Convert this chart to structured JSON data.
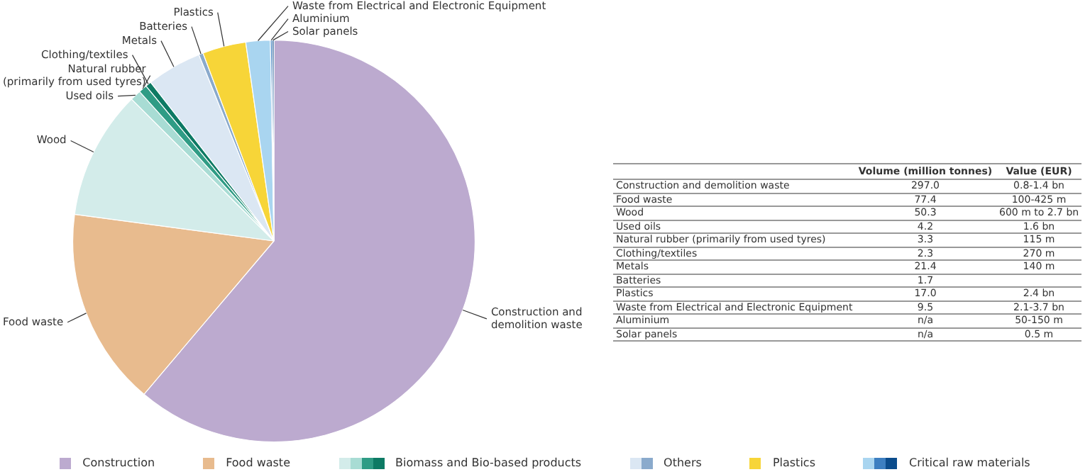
{
  "chart_data": {
    "type": "pie",
    "categories": [
      "Construction and demolition waste",
      "Food waste",
      "Wood",
      "Used oils",
      "Natural rubber (primarily from used tyres)",
      "Clothing/textiles",
      "Metals",
      "Batteries",
      "Plastics",
      "Waste from Electrical and Electronic Equipment",
      "Aluminium",
      "Solar panels"
    ],
    "values": [
      61.18,
      15.94,
      10.36,
      0.87,
      0.68,
      0.47,
      4.41,
      0.35,
      3.5,
      1.96,
      0.14,
      0.14
    ],
    "colors": [
      "#bcaacf",
      "#e8bb8e",
      "#d3ecea",
      "#a8dcd4",
      "#2f9c85",
      "#0d7a64",
      "#dbe7f3",
      "#8aaacc",
      "#f7d538",
      "#a9d5f0",
      "#3d7fc1",
      "#0b4c8c"
    ],
    "annotations": [
      "Volume (million tonnes)",
      "Value (EUR)",
      {
        "text": "297.0",
        "x": "Construction and demolition waste"
      },
      {
        "text": "77.4",
        "x": "Food waste"
      },
      {
        "text": "50.3",
        "x": "Wood"
      },
      {
        "text": "4.2",
        "x": "Used oils"
      },
      {
        "text": "3.3",
        "x": "Natural rubber (primarily from used tyres)"
      },
      {
        "text": "2.3",
        "x": "Clothing/textiles"
      },
      {
        "text": "21.4",
        "x": "Metals"
      },
      {
        "text": "1.7",
        "x": "Batteries"
      },
      {
        "text": "17.0",
        "x": "Plastics"
      },
      {
        "text": "9.5",
        "x": "Waste from Electrical and Electronic Equipment"
      },
      {
        "text": "n/a",
        "x": "Aluminium"
      },
      {
        "text": "n/a",
        "x": "Solar panels"
      },
      {
        "text": "0.8-1.4 bn",
        "x": "Construction and demolition waste"
      },
      {
        "text": "100-425 m",
        "x": "Food waste"
      },
      {
        "text": "600 m to 2.7 bn",
        "x": "Wood"
      },
      {
        "text": "1.6 bn",
        "x": "Used oils"
      },
      {
        "text": "115 m",
        "x": "Natural rubber (primarily from used tyres)"
      },
      {
        "text": "270 m",
        "x": "Clothing/textiles"
      },
      {
        "text": "140 m",
        "x": "Metals"
      },
      {
        "text": "2.4 bn",
        "x": "Plastics"
      },
      {
        "text": "2.1-3.7 bn",
        "x": "Waste from Electrical and Electronic Equipment"
      },
      {
        "text": "50-150 m",
        "x": "Aluminium"
      },
      {
        "text": "0.5 m",
        "x": "Solar panels"
      },
      "Construction",
      "Food waste",
      "Biomass and Bio-based products",
      "Others",
      "Plastics",
      "Critical raw materials"
    ],
    "legend": "bottom"
  }
}
